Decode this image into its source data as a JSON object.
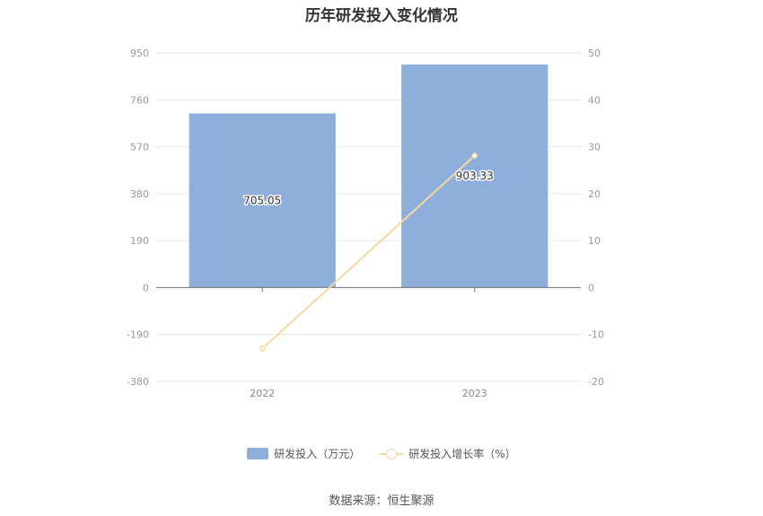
{
  "chart_data": {
    "type": "bar",
    "title": "历年研发投入变化情况",
    "categories": [
      "2022",
      "2023"
    ],
    "series": [
      {
        "name": "研发投入（万元）",
        "type": "bar",
        "axis": "left",
        "color": "#8eaedb",
        "values": [
          705.05,
          903.33
        ],
        "labels": [
          "705.05",
          "903.33"
        ]
      },
      {
        "name": "研发投入增长率（%）",
        "type": "line",
        "axis": "right",
        "color": "#f8d7a0",
        "values": [
          -13.0,
          28.12
        ]
      }
    ],
    "y_left": {
      "ticks": [
        "950",
        "760",
        "570",
        "380",
        "190",
        "0",
        "-190",
        "-380"
      ],
      "range": [
        -380,
        950
      ]
    },
    "y_right": {
      "ticks": [
        "50",
        "40",
        "30",
        "20",
        "10",
        "0",
        "-10",
        "-20"
      ],
      "range": [
        -20,
        50
      ]
    },
    "grid": true,
    "legend_position": "bottom"
  },
  "source_text": "数据来源：恒生聚源"
}
